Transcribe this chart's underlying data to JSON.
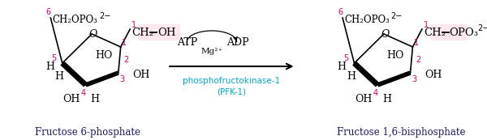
{
  "bg_color": "#ffffff",
  "magenta": "#cc0077",
  "cyan_blue": "#00aacc",
  "black": "#000000",
  "navy": "#1a1a6e",
  "pink_fill": "#fde8ee",
  "fig_width": 6.0,
  "fig_height": 1.73,
  "label_left": "Fructose 6-phosphate",
  "label_right": "Fructose 1,6-bisphosphate",
  "atp_label": "ATP",
  "adp_label": "ADP",
  "enzyme_label": "phosphofructokinase-1",
  "enzyme_label2": "(PFK-1)"
}
